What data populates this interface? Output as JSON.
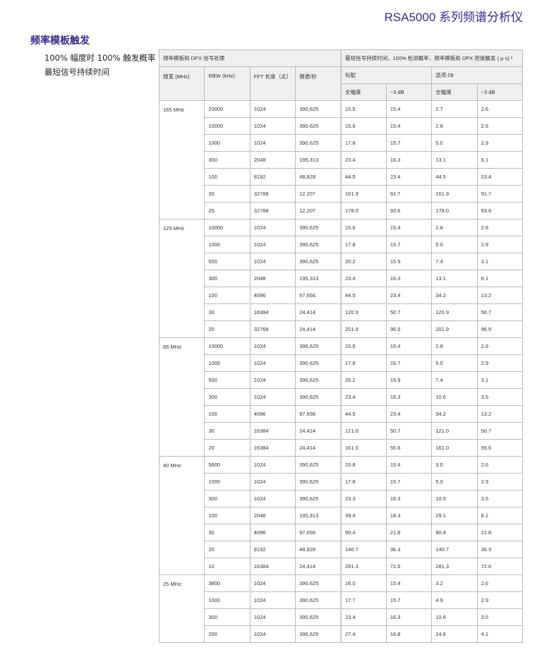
{
  "header": {
    "doc_title": "RSA5000 系列频谱分析仪"
  },
  "section": {
    "title": "频率模板触发",
    "sub_lines": [
      "100% 幅度时 100% 触发概率",
      "最短信号持续时间"
    ]
  },
  "table": {
    "group1": "频率模板和 DPX 信号处理",
    "group2": "最短信号持续时间，100% 检测概率，频率模板和 DPX 密度触发 ( μ s) ²",
    "cols": [
      "频宽 (MHz)",
      "RBW (kHz)",
      "FFT 长度（点）",
      "频谱/秒"
    ],
    "std": "标配",
    "opt": "选项 09",
    "sub": [
      "全幅度",
      "−3 dB",
      "全幅度",
      "−3 dB"
    ],
    "groups": [
      {
        "bw": "165 MHz",
        "rows": [
          [
            "20000",
            "1024",
            "390,625",
            "15.5",
            "15.4",
            "2.7",
            "2.6"
          ],
          [
            "10000",
            "1024",
            "390,625",
            "15.6",
            "15.4",
            "2.8",
            "2.6"
          ],
          [
            "1000",
            "1024",
            "390,625",
            "17.8",
            "15.7",
            "5.0",
            "2.9"
          ],
          [
            "300",
            "2048",
            "195,313",
            "23.4",
            "16.3",
            "13.1",
            "6.1"
          ],
          [
            "100",
            "8192",
            "48,828",
            "44.5",
            "23.4",
            "44.5",
            "23.4"
          ],
          [
            "30",
            "32768",
            "12,207",
            "161.9",
            "91.7",
            "161.9",
            "91.7"
          ],
          [
            "25",
            "32768",
            "12,207",
            "178.0",
            "93.6",
            "178.0",
            "93.6"
          ]
        ]
      },
      {
        "bw": "125 MHz",
        "rows": [
          [
            "10000",
            "1024",
            "390,625",
            "15.6",
            "15.4",
            "2.8",
            "2.6"
          ],
          [
            "1000",
            "1024",
            "390,625",
            "17.8",
            "15.7",
            "5.0",
            "2.9"
          ],
          [
            "500",
            "1024",
            "390,625",
            "20.2",
            "15.9",
            "7.4",
            "3.1"
          ],
          [
            "300",
            "2048",
            "195,313",
            "23.4",
            "16.3",
            "13.1",
            "6.1"
          ],
          [
            "100",
            "4096",
            "97,656",
            "44.5",
            "23.4",
            "34.2",
            "13.2"
          ],
          [
            "30",
            "16384",
            "24,414",
            "120.9",
            "50.7",
            "120.9",
            "50.7"
          ],
          [
            "20",
            "32768",
            "24,414",
            "201.9",
            "96.5",
            "201.9",
            "96.5"
          ]
        ]
      },
      {
        "bw": "85 MHz",
        "rows": [
          [
            "10000",
            "1024",
            "390,625",
            "15.6",
            "15.4",
            "2.8",
            "2.6"
          ],
          [
            "1000",
            "1024",
            "390,625",
            "17.8",
            "15.7",
            "5.0",
            "2.9"
          ],
          [
            "500",
            "1024",
            "390,625",
            "20.2",
            "15.9",
            "7.4",
            "3.1"
          ],
          [
            "300",
            "1024",
            "390,625",
            "23.4",
            "16.3",
            "10.6",
            "3.5"
          ],
          [
            "100",
            "4096",
            "97,656",
            "44.5",
            "23.4",
            "34.2",
            "13.2"
          ],
          [
            "30",
            "16384",
            "24,414",
            "121.0",
            "50.7",
            "121.0",
            "50.7"
          ],
          [
            "20",
            "16384",
            "24,414",
            "161.0",
            "55.6",
            "161.0",
            "55.6"
          ]
        ]
      },
      {
        "bw": "40 MHz",
        "rows": [
          [
            "5000",
            "1024",
            "390,625",
            "15.8",
            "15.4",
            "3.0",
            "2.6"
          ],
          [
            "1000",
            "1024",
            "390,625",
            "17.8",
            "15.7",
            "5.0",
            "2.9"
          ],
          [
            "300",
            "1024",
            "390,625",
            "23.3",
            "16.3",
            "10.5",
            "3.5"
          ],
          [
            "100",
            "2048",
            "195,313",
            "39.4",
            "18.3",
            "29.1",
            "8.1"
          ],
          [
            "30",
            "4096",
            "97,656",
            "90.4",
            "21.8",
            "90.4",
            "21.8"
          ],
          [
            "20",
            "8192",
            "48,828",
            "140.7",
            "36.3",
            "140.7",
            "36.3"
          ],
          [
            "10",
            "16384",
            "24,414",
            "281.3",
            "72.6",
            "281.3",
            "72.6"
          ]
        ]
      },
      {
        "bw": "25 MHz",
        "rows": [
          [
            "3800",
            "1024",
            "390,625",
            "16.0",
            "15.4",
            "3.2",
            "2.6"
          ],
          [
            "1000",
            "1024",
            "390,625",
            "17.7",
            "15.7",
            "4.9",
            "2.9"
          ],
          [
            "300",
            "1024",
            "390,625",
            "23.4",
            "16.3",
            "10.6",
            "3.5"
          ],
          [
            "200",
            "1024",
            "390,625",
            "27.4",
            "16.8",
            "14.6",
            "4.1"
          ]
        ]
      }
    ]
  }
}
